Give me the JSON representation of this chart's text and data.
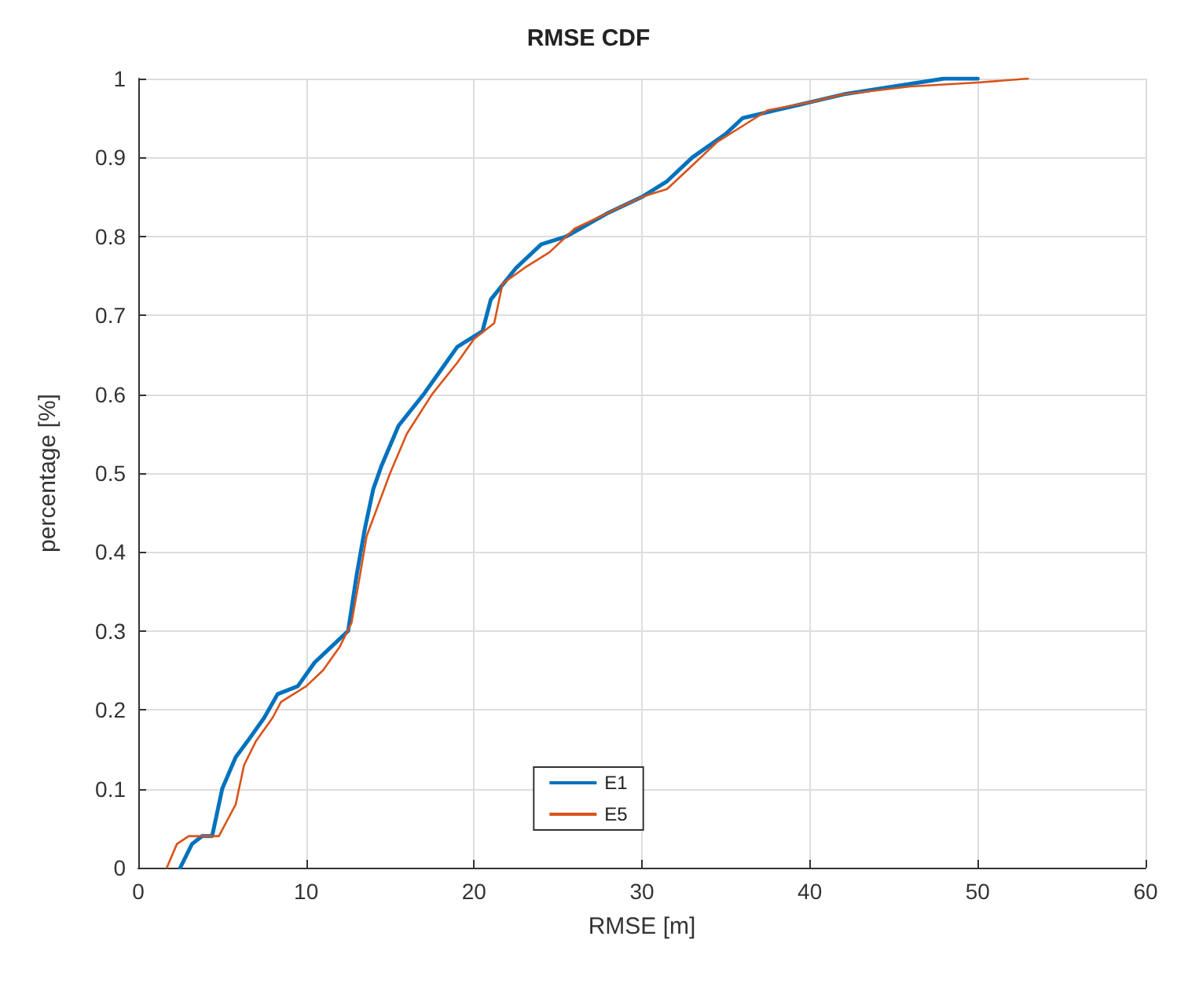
{
  "chart_data": {
    "type": "line",
    "title": "RMSE CDF",
    "xlabel": "RMSE [m]",
    "ylabel": "percentage [%]",
    "xlim": [
      0,
      60
    ],
    "xticks": [
      0,
      10,
      20,
      30,
      40,
      50,
      60
    ],
    "ylim": [
      0,
      1
    ],
    "yticks": [
      0,
      0.1,
      0.2,
      0.3,
      0.4,
      0.5,
      0.6,
      0.7,
      0.8,
      0.9,
      1
    ],
    "grid": true,
    "legend": "bottom",
    "line_style": "solid",
    "marker": "none",
    "series": [
      {
        "name": "E1",
        "color": "#0072bd",
        "x": [
          2.5,
          3.2,
          3.8,
          4.4,
          5.0,
          5.8,
          6.5,
          7.5,
          8.3,
          9.5,
          10.5,
          11.5,
          12.5,
          13.0,
          13.5,
          14.0,
          14.5,
          15.5,
          17.0,
          18.0,
          19.0,
          20.5,
          21.0,
          22.5,
          24.0,
          25.5,
          28.0,
          30.0,
          31.5,
          33.0,
          35.0,
          36.0,
          38.0,
          40.0,
          42.0,
          45.0,
          48.0,
          50.0
        ],
        "values": [
          0,
          0.03,
          0.04,
          0.04,
          0.1,
          0.14,
          0.16,
          0.19,
          0.22,
          0.23,
          0.26,
          0.28,
          0.3,
          0.37,
          0.43,
          0.48,
          0.51,
          0.56,
          0.6,
          0.63,
          0.66,
          0.68,
          0.72,
          0.76,
          0.79,
          0.8,
          0.83,
          0.85,
          0.87,
          0.9,
          0.93,
          0.95,
          0.96,
          0.97,
          0.98,
          0.99,
          1.0,
          1.0
        ]
      },
      {
        "name": "E5",
        "color": "#d95319",
        "x": [
          1.7,
          2.3,
          3.0,
          4.0,
          4.8,
          5.3,
          5.8,
          6.3,
          7.0,
          8.0,
          8.5,
          10.0,
          11.0,
          12.0,
          12.7,
          13.2,
          13.6,
          14.3,
          15.0,
          16.0,
          17.5,
          19.0,
          20.0,
          21.2,
          21.7,
          23.0,
          24.5,
          26.0,
          28.0,
          30.0,
          31.5,
          33.0,
          34.5,
          36.0,
          37.5,
          40.0,
          42.0,
          46.0,
          50.0,
          53.0
        ],
        "values": [
          0,
          0.03,
          0.04,
          0.04,
          0.04,
          0.06,
          0.08,
          0.13,
          0.16,
          0.19,
          0.21,
          0.23,
          0.25,
          0.28,
          0.31,
          0.37,
          0.42,
          0.46,
          0.5,
          0.55,
          0.6,
          0.64,
          0.67,
          0.69,
          0.74,
          0.76,
          0.78,
          0.81,
          0.83,
          0.85,
          0.86,
          0.89,
          0.92,
          0.94,
          0.96,
          0.97,
          0.98,
          0.99,
          0.995,
          1.0
        ]
      }
    ]
  }
}
